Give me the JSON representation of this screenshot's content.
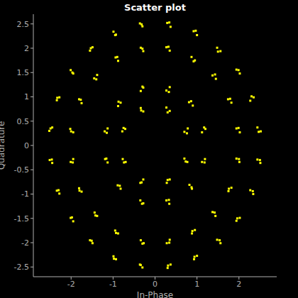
{
  "chart_data": {
    "type": "scatter",
    "title": "Scatter plot",
    "x_label": "In-Phase",
    "y_label": "Quadrature",
    "color": "#ffff00",
    "marker": "square",
    "grid": false,
    "xlim": [
      -2.9,
      2.9
    ],
    "ylim": [
      -2.7,
      2.7
    ],
    "xticks": [
      -2,
      -1,
      0,
      1,
      2
    ],
    "yticks": [
      -2.5,
      -2,
      -1.5,
      -1,
      -0.5,
      0,
      0.5,
      1,
      1.5,
      2,
      2.5
    ],
    "points": [
      [
        0.78,
        0.35
      ],
      [
        0.7,
        0.28
      ],
      [
        0.76,
        0.25
      ],
      [
        0.27,
        0.78
      ],
      [
        0.35,
        0.71
      ],
      [
        0.3,
        0.68
      ],
      [
        1.2,
        0.34
      ],
      [
        1.12,
        0.27
      ],
      [
        1.17,
        0.37
      ],
      [
        0.81,
        0.89
      ],
      [
        0.9,
        0.82
      ],
      [
        0.86,
        0.91
      ],
      [
        0.35,
        1.2
      ],
      [
        0.27,
        1.13
      ],
      [
        0.33,
        1.1
      ],
      [
        2.02,
        0.27
      ],
      [
        1.94,
        0.35
      ],
      [
        1.99,
        0.36
      ],
      [
        1.74,
        0.95
      ],
      [
        1.82,
        0.88
      ],
      [
        1.79,
        0.96
      ],
      [
        1.45,
        1.37
      ],
      [
        1.37,
        1.44
      ],
      [
        1.43,
        1.46
      ],
      [
        0.87,
        1.82
      ],
      [
        0.95,
        1.75
      ],
      [
        0.92,
        1.73
      ],
      [
        0.27,
        2.02
      ],
      [
        0.35,
        1.95
      ],
      [
        0.32,
        2.03
      ],
      [
        2.52,
        0.29
      ],
      [
        2.44,
        0.37
      ],
      [
        2.47,
        0.28
      ],
      [
        2.35,
        0.99
      ],
      [
        2.27,
        0.92
      ],
      [
        2.3,
        1.01
      ],
      [
        1.94,
        1.56
      ],
      [
        2.02,
        1.48
      ],
      [
        1.99,
        1.55
      ],
      [
        1.56,
        1.94
      ],
      [
        1.48,
        2.01
      ],
      [
        1.5,
        1.93
      ],
      [
        0.92,
        2.35
      ],
      [
        1.0,
        2.27
      ],
      [
        0.97,
        2.36
      ],
      [
        0.29,
        2.52
      ],
      [
        0.37,
        2.44
      ],
      [
        0.34,
        2.53
      ],
      [
        -0.71,
        0.34
      ],
      [
        -0.78,
        0.29
      ],
      [
        -0.75,
        0.36
      ],
      [
        -0.34,
        0.77
      ],
      [
        -0.28,
        0.7
      ],
      [
        -0.33,
        0.72
      ],
      [
        -1.13,
        0.35
      ],
      [
        -1.2,
        0.29
      ],
      [
        -1.15,
        0.26
      ],
      [
        -0.88,
        0.81
      ],
      [
        -0.82,
        0.88
      ],
      [
        -0.87,
        0.9
      ],
      [
        -0.28,
        1.19
      ],
      [
        -0.34,
        1.12
      ],
      [
        -0.3,
        1.21
      ],
      [
        -1.95,
        0.27
      ],
      [
        -2.02,
        0.34
      ],
      [
        -2.0,
        0.29
      ],
      [
        -1.81,
        0.95
      ],
      [
        -1.75,
        0.87
      ],
      [
        -1.77,
        0.94
      ],
      [
        -1.38,
        1.45
      ],
      [
        -1.45,
        1.38
      ],
      [
        -1.4,
        1.36
      ],
      [
        -0.94,
        1.81
      ],
      [
        -0.88,
        1.74
      ],
      [
        -0.9,
        1.82
      ],
      [
        -0.34,
        2.01
      ],
      [
        -0.28,
        1.94
      ],
      [
        -0.3,
        1.99
      ],
      [
        -2.45,
        0.37
      ],
      [
        -2.52,
        0.3
      ],
      [
        -2.49,
        0.35
      ],
      [
        -2.28,
        0.99
      ],
      [
        -2.34,
        0.93
      ],
      [
        -2.33,
        0.98
      ],
      [
        -2.01,
        1.55
      ],
      [
        -1.95,
        1.48
      ],
      [
        -1.97,
        1.5
      ],
      [
        -1.49,
        2.02
      ],
      [
        -1.55,
        1.95
      ],
      [
        -1.53,
        2.0
      ],
      [
        -0.99,
        2.34
      ],
      [
        -0.93,
        2.28
      ],
      [
        -0.95,
        2.27
      ],
      [
        -0.36,
        2.51
      ],
      [
        -0.3,
        2.45
      ],
      [
        -0.32,
        2.49
      ],
      [
        -0.77,
        -0.28
      ],
      [
        -0.7,
        -0.34
      ],
      [
        -0.74,
        -0.35
      ],
      [
        -0.28,
        -0.7
      ],
      [
        -0.35,
        -0.77
      ],
      [
        -0.32,
        -0.76
      ],
      [
        -1.19,
        -0.28
      ],
      [
        -1.13,
        -0.35
      ],
      [
        -1.16,
        -0.27
      ],
      [
        -0.89,
        -0.82
      ],
      [
        -0.82,
        -0.89
      ],
      [
        -0.84,
        -0.83
      ],
      [
        -0.35,
        -1.13
      ],
      [
        -0.28,
        -1.19
      ],
      [
        -0.31,
        -1.2
      ],
      [
        -2.01,
        -0.34
      ],
      [
        -1.95,
        -0.28
      ],
      [
        -1.96,
        -0.35
      ],
      [
        -1.75,
        -0.95
      ],
      [
        -1.81,
        -0.88
      ],
      [
        -1.8,
        -0.93
      ],
      [
        -1.44,
        -1.38
      ],
      [
        -1.38,
        -1.45
      ],
      [
        -1.42,
        -1.44
      ],
      [
        -0.88,
        -1.81
      ],
      [
        -0.95,
        -1.75
      ],
      [
        -0.93,
        -1.8
      ],
      [
        -0.34,
        -1.95
      ],
      [
        -0.27,
        -2.01
      ],
      [
        -0.3,
        -2.02
      ],
      [
        -2.51,
        -0.3
      ],
      [
        -2.45,
        -0.36
      ],
      [
        -2.46,
        -0.29
      ],
      [
        -2.34,
        -0.93
      ],
      [
        -2.28,
        -0.99
      ],
      [
        -2.3,
        -0.92
      ],
      [
        -1.95,
        -1.56
      ],
      [
        -2.01,
        -1.49
      ],
      [
        -1.98,
        -1.48
      ],
      [
        -1.55,
        -1.95
      ],
      [
        -1.49,
        -2.01
      ],
      [
        -1.51,
        -1.96
      ],
      [
        -0.93,
        -2.34
      ],
      [
        -0.99,
        -2.28
      ],
      [
        -0.98,
        -2.33
      ],
      [
        -0.3,
        -2.51
      ],
      [
        -0.36,
        -2.45
      ],
      [
        -0.34,
        -2.46
      ],
      [
        0.7,
        -0.27
      ],
      [
        0.77,
        -0.34
      ],
      [
        0.73,
        -0.33
      ],
      [
        0.35,
        -0.7
      ],
      [
        0.28,
        -0.77
      ],
      [
        0.3,
        -0.71
      ],
      [
        1.12,
        -0.34
      ],
      [
        1.19,
        -0.28
      ],
      [
        1.18,
        -0.35
      ],
      [
        0.82,
        -0.81
      ],
      [
        0.88,
        -0.89
      ],
      [
        0.87,
        -0.86
      ],
      [
        0.27,
        -1.13
      ],
      [
        0.34,
        -1.2
      ],
      [
        0.33,
        -1.12
      ],
      [
        1.94,
        -0.27
      ],
      [
        2.01,
        -0.34
      ],
      [
        2.0,
        -0.28
      ],
      [
        1.82,
        -0.87
      ],
      [
        1.75,
        -0.94
      ],
      [
        1.76,
        -0.89
      ],
      [
        1.37,
        -1.37
      ],
      [
        1.44,
        -1.45
      ],
      [
        1.42,
        -1.38
      ],
      [
        0.95,
        -1.74
      ],
      [
        0.88,
        -1.81
      ],
      [
        0.89,
        -1.76
      ],
      [
        0.35,
        -1.94
      ],
      [
        0.28,
        -2.01
      ],
      [
        0.34,
        -2.0
      ],
      [
        2.44,
        -0.29
      ],
      [
        2.51,
        -0.36
      ],
      [
        2.5,
        -0.3
      ],
      [
        2.27,
        -0.92
      ],
      [
        2.34,
        -1.0
      ],
      [
        2.33,
        -0.94
      ],
      [
        2.02,
        -1.49
      ],
      [
        1.94,
        -1.55
      ],
      [
        1.96,
        -1.5
      ],
      [
        1.48,
        -1.94
      ],
      [
        1.56,
        -2.01
      ],
      [
        1.54,
        -1.95
      ],
      [
        1.0,
        -2.27
      ],
      [
        0.93,
        -2.34
      ],
      [
        0.94,
        -2.29
      ],
      [
        0.37,
        -2.45
      ],
      [
        0.3,
        -2.52
      ],
      [
        0.31,
        -2.47
      ]
    ]
  }
}
